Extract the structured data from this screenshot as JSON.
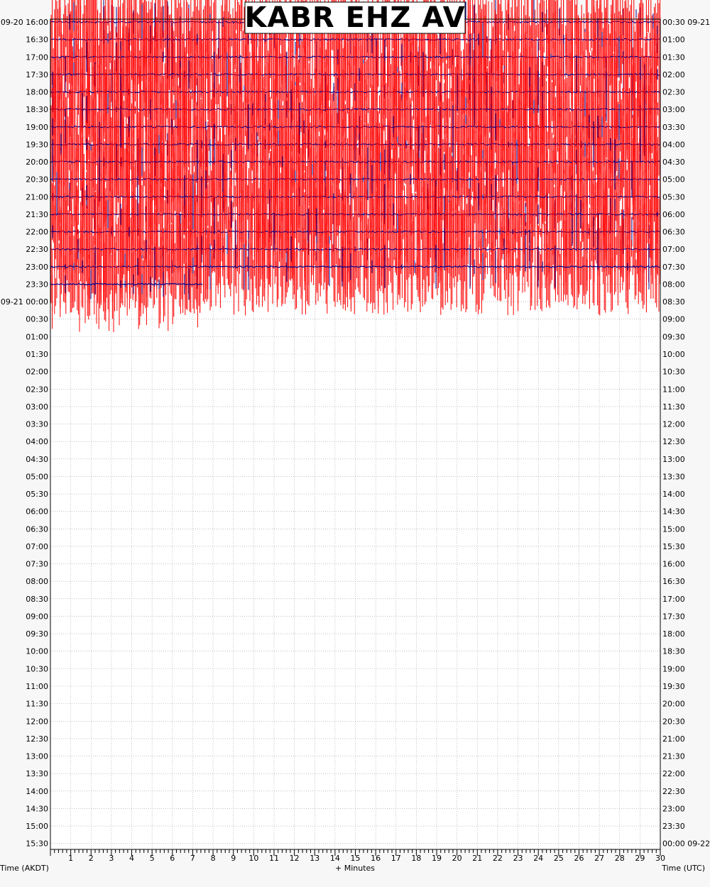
{
  "chart_data": {
    "type": "line",
    "title": "KABR EHZ AV",
    "xlabel": "+ Minutes",
    "left_axis_label": "Time (AKDT)",
    "right_axis_label": "Time (UTC)",
    "x_ticks": [
      "1",
      "2",
      "3",
      "4",
      "5",
      "6",
      "7",
      "8",
      "9",
      "10",
      "11",
      "12",
      "13",
      "14",
      "15",
      "16",
      "17",
      "18",
      "19",
      "20",
      "21",
      "22",
      "23",
      "24",
      "25",
      "26",
      "27",
      "28",
      "29",
      "30"
    ],
    "xlim": [
      0,
      30
    ],
    "left_rows": [
      "09-20 16:00",
      "16:30",
      "17:00",
      "17:30",
      "18:00",
      "18:30",
      "19:00",
      "19:30",
      "20:00",
      "20:30",
      "21:00",
      "21:30",
      "22:00",
      "22:30",
      "23:00",
      "23:30",
      "09-21 00:00",
      "00:30",
      "01:00",
      "01:30",
      "02:00",
      "02:30",
      "03:00",
      "03:30",
      "04:00",
      "04:30",
      "05:00",
      "05:30",
      "06:00",
      "06:30",
      "07:00",
      "07:30",
      "08:00",
      "08:30",
      "09:00",
      "09:30",
      "10:00",
      "10:30",
      "11:00",
      "11:30",
      "12:00",
      "12:30",
      "13:00",
      "13:30",
      "14:00",
      "14:30",
      "15:00",
      "15:30"
    ],
    "right_rows": [
      "00:30 09-21",
      "01:00",
      "01:30",
      "02:00",
      "02:30",
      "03:00",
      "03:30",
      "04:00",
      "04:30",
      "05:00",
      "05:30",
      "06:00",
      "06:30",
      "07:00",
      "07:30",
      "08:00",
      "08:30",
      "09:00",
      "09:30",
      "10:00",
      "10:30",
      "11:00",
      "11:30",
      "12:00",
      "12:30",
      "13:00",
      "13:30",
      "14:00",
      "14:30",
      "15:00",
      "15:30",
      "16:00",
      "16:30",
      "17:00",
      "17:30",
      "18:00",
      "18:30",
      "19:00",
      "19:30",
      "20:00",
      "20:30",
      "21:00",
      "21:30",
      "22:00",
      "22:30",
      "23:00",
      "23:30",
      "00:00 09-22"
    ],
    "rows_with_data": 16,
    "last_row_end_minute": 7.5,
    "series": [
      {
        "trace_color": "#00008b",
        "spike_color": "#ff0000"
      }
    ],
    "grid": true
  }
}
